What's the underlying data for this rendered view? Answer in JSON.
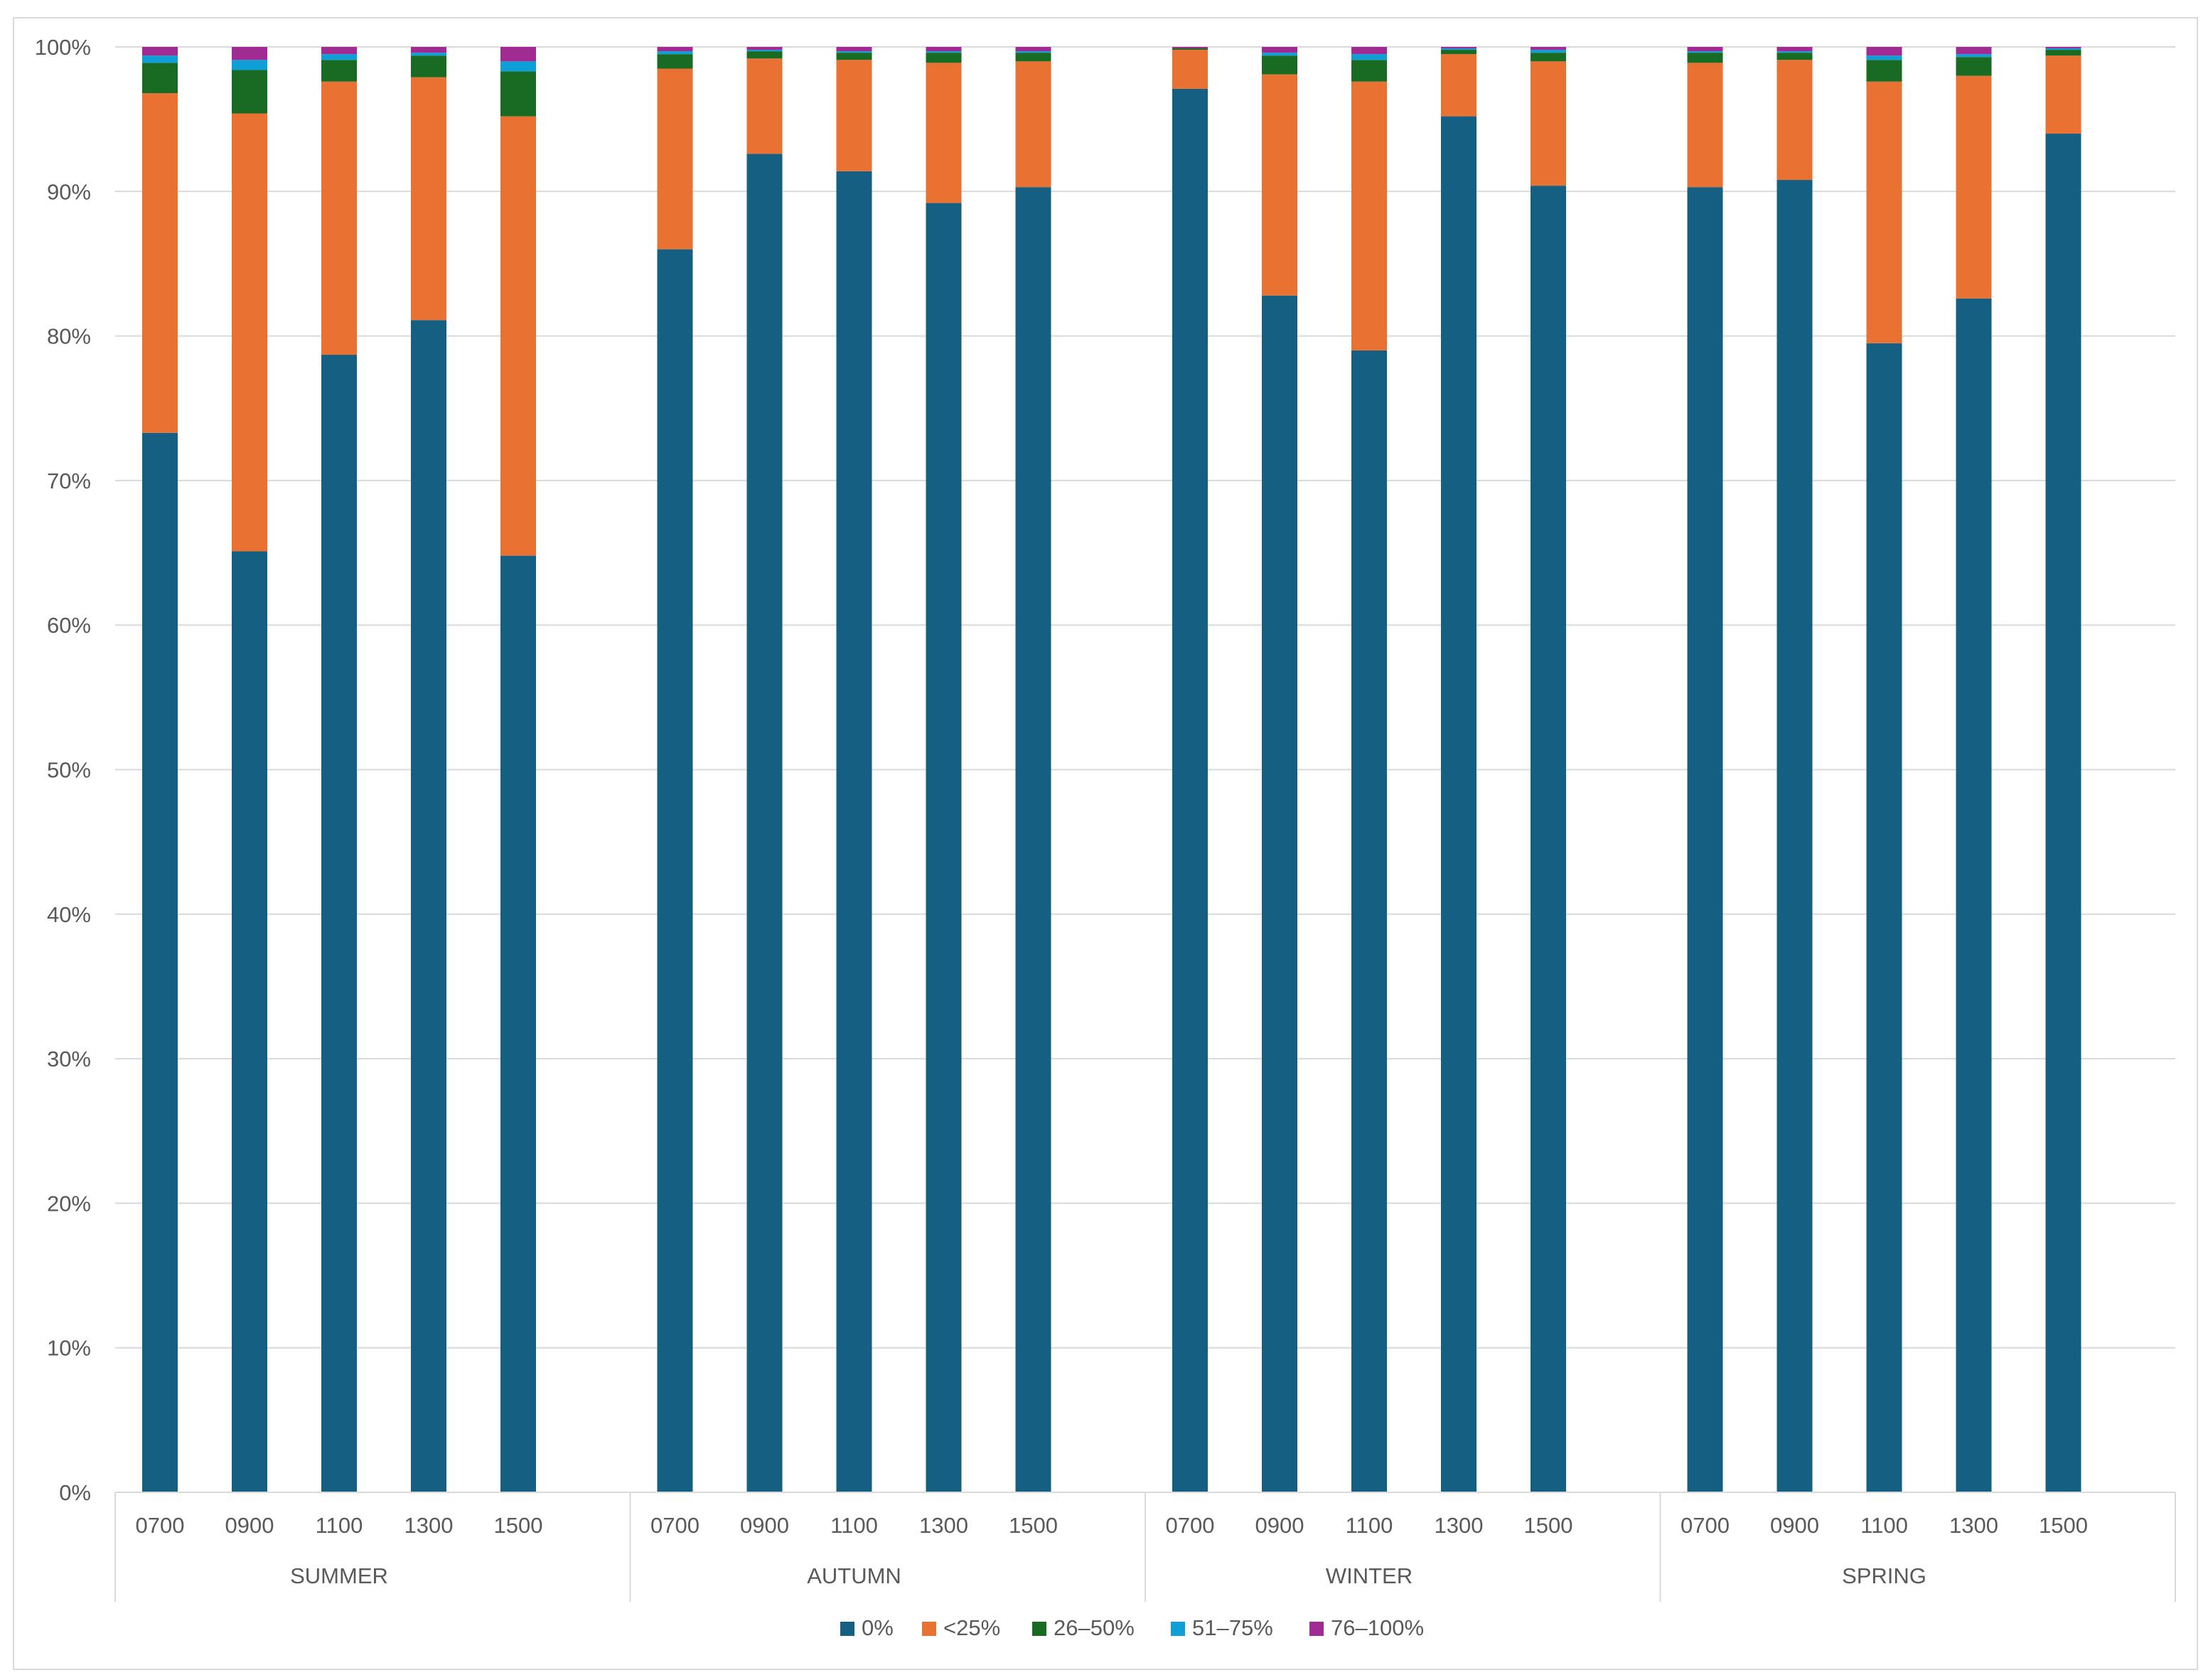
{
  "chart_data": {
    "type": "bar",
    "stacked": true,
    "normalized": true,
    "title": "",
    "xlabel": "",
    "ylabel": "",
    "ylim": [
      0,
      100
    ],
    "y_ticks": [
      "0%",
      "10%",
      "20%",
      "30%",
      "40%",
      "50%",
      "60%",
      "70%",
      "80%",
      "90%",
      "100%"
    ],
    "grid": true,
    "legend_position": "bottom-center",
    "groups": [
      {
        "name": "SUMMER",
        "categories": [
          "0700",
          "0900",
          "1100",
          "1300",
          "1500"
        ]
      },
      {
        "name": "AUTUMN",
        "categories": [
          "0700",
          "0900",
          "1100",
          "1300",
          "1500"
        ]
      },
      {
        "name": "WINTER",
        "categories": [
          "0700",
          "0900",
          "1100",
          "1300",
          "1500"
        ]
      },
      {
        "name": "SPRING",
        "categories": [
          "0700",
          "0900",
          "1100",
          "1300",
          "1500"
        ]
      }
    ],
    "series": [
      {
        "name": "0%",
        "color": "#156082",
        "values": [
          73.3,
          65.1,
          78.7,
          81.1,
          64.8,
          86.0,
          92.6,
          91.4,
          89.2,
          90.3,
          97.1,
          82.8,
          79.0,
          95.2,
          90.4,
          90.3,
          90.8,
          79.5,
          82.6,
          94.0
        ]
      },
      {
        "name": "<25%",
        "color": "#E97132",
        "values": [
          23.5,
          30.3,
          18.9,
          16.8,
          30.4,
          12.5,
          6.6,
          7.7,
          9.7,
          8.7,
          2.7,
          15.3,
          18.6,
          4.3,
          8.6,
          8.6,
          8.3,
          18.1,
          15.4,
          5.4
        ]
      },
      {
        "name": "26–50%",
        "color": "#196B24",
        "values": [
          2.1,
          3.0,
          1.5,
          1.5,
          3.1,
          1.0,
          0.5,
          0.5,
          0.7,
          0.6,
          0.1,
          1.3,
          1.5,
          0.3,
          0.6,
          0.7,
          0.5,
          1.5,
          1.3,
          0.4
        ]
      },
      {
        "name": "51–75%",
        "color": "#0F9ED5",
        "values": [
          0.5,
          0.7,
          0.4,
          0.2,
          0.7,
          0.2,
          0.1,
          0.1,
          0.1,
          0.1,
          0.0,
          0.2,
          0.4,
          0.1,
          0.2,
          0.1,
          0.1,
          0.3,
          0.2,
          0.1
        ]
      },
      {
        "name": "76–100%",
        "color": "#A02B93",
        "values": [
          0.6,
          0.9,
          0.5,
          0.4,
          1.0,
          0.3,
          0.2,
          0.3,
          0.3,
          0.3,
          0.1,
          0.4,
          0.5,
          0.1,
          0.2,
          0.3,
          0.3,
          0.6,
          0.5,
          0.1
        ]
      }
    ]
  }
}
